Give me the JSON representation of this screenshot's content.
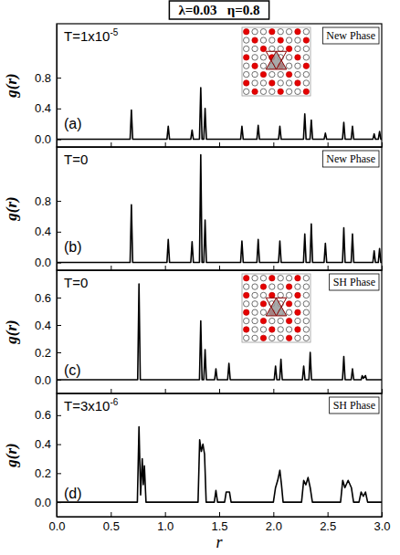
{
  "title": "λ=0.03   η=0.8",
  "chart_data": [
    {
      "type": "line",
      "label": "(a)",
      "annotation": "T=1x10",
      "annotation_superscript": "-5",
      "phase": "New Phase",
      "ylabel": "g(r)",
      "color": "#000000",
      "tick_labels": "y",
      "xlim": [
        0,
        3
      ],
      "xticks": [
        0,
        0.5,
        1,
        1.5,
        2,
        2.5,
        3
      ],
      "ylim": [
        -0.1,
        1.5
      ],
      "yticks": [
        {
          "value": 0,
          "label": "0.0"
        },
        0.4,
        0.8
      ],
      "x": [
        0,
        0.678,
        0.69,
        0.702,
        1.018,
        1.03,
        1.042,
        1.238,
        1.25,
        1.262,
        1.318,
        1.33,
        1.342,
        1.358,
        1.37,
        1.382,
        1.698,
        1.71,
        1.722,
        1.848,
        1.86,
        1.872,
        2.048,
        2.06,
        2.072,
        2.278,
        2.29,
        2.302,
        2.338,
        2.35,
        2.362,
        2.468,
        2.48,
        2.492,
        2.638,
        2.65,
        2.662,
        2.718,
        2.73,
        2.742,
        2.918,
        2.93,
        2.942,
        2.968,
        2.98,
        2.992,
        3
      ],
      "values": [
        0,
        0,
        0.38,
        0,
        0,
        0.17,
        0,
        0,
        0.12,
        0,
        0,
        0.67,
        0,
        0,
        0.4,
        0,
        0,
        0.17,
        0,
        0,
        0.18,
        0,
        0,
        0.17,
        0,
        0,
        0.33,
        0,
        0,
        0.25,
        0,
        0,
        0.08,
        0,
        0,
        0.22,
        0,
        0,
        0.17,
        0,
        0,
        0.07,
        0,
        0,
        0.1,
        0,
        0
      ]
    },
    {
      "type": "line",
      "label": "(b)",
      "annotation": "T=0",
      "phase": "New Phase",
      "ylabel": "g(r)",
      "color": "#000000",
      "tick_labels": "y",
      "xlim": [
        0,
        3
      ],
      "xticks": [
        0,
        0.5,
        1,
        1.5,
        2,
        2.5,
        3
      ],
      "ylim": [
        -0.1,
        1.5
      ],
      "yticks": [
        {
          "value": 0,
          "label": "0.0"
        },
        0.4,
        0.8
      ],
      "x": [
        0,
        0.678,
        0.69,
        0.702,
        1.018,
        1.03,
        1.042,
        1.238,
        1.25,
        1.262,
        1.318,
        1.33,
        1.342,
        1.358,
        1.37,
        1.382,
        1.698,
        1.71,
        1.722,
        1.848,
        1.86,
        1.872,
        2.048,
        2.06,
        2.072,
        2.278,
        2.29,
        2.302,
        2.338,
        2.35,
        2.362,
        2.468,
        2.48,
        2.492,
        2.638,
        2.65,
        2.662,
        2.718,
        2.73,
        2.742,
        2.918,
        2.93,
        2.942,
        2.968,
        2.98,
        2.992,
        3
      ],
      "values": [
        0,
        0,
        0.75,
        0,
        0,
        0.3,
        0,
        0,
        0.27,
        0,
        0,
        1.4,
        0,
        0,
        0.55,
        0,
        0,
        0.28,
        0,
        0,
        0.3,
        0,
        0,
        0.28,
        0,
        0,
        0.37,
        0,
        0,
        0.5,
        0,
        0,
        0.25,
        0,
        0,
        0.45,
        0,
        0,
        0.37,
        0,
        0,
        0.15,
        0,
        0,
        0.18,
        0,
        0
      ]
    },
    {
      "type": "line",
      "label": "(c)",
      "annotation": "T=0",
      "phase": "SH Phase",
      "ylabel": "g(r)",
      "color": "#000000",
      "tick_labels": "y",
      "xlim": [
        0,
        3
      ],
      "xticks": [
        0,
        0.5,
        1,
        1.5,
        2,
        2.5,
        3
      ],
      "ylim": [
        -0.1,
        0.8
      ],
      "yticks": [
        {
          "value": 0,
          "label": "0.0"
        },
        0.2,
        0.4,
        0.6
      ],
      "x": [
        0,
        0.748,
        0.76,
        0.772,
        1.318,
        1.33,
        1.342,
        1.358,
        1.37,
        1.382,
        1.458,
        1.47,
        1.482,
        1.578,
        1.59,
        1.602,
        2.008,
        2.02,
        2.032,
        2.058,
        2.07,
        2.082,
        2.268,
        2.28,
        2.292,
        2.328,
        2.34,
        2.352,
        2.638,
        2.65,
        2.662,
        2.718,
        2.73,
        2.742,
        2.81,
        2.82,
        2.83,
        2.85,
        2.86,
        3
      ],
      "values": [
        0,
        0,
        0.7,
        0,
        0,
        0.43,
        0,
        0,
        0.22,
        0,
        0,
        0.08,
        0,
        0,
        0.12,
        0,
        0,
        0.1,
        0,
        0,
        0.15,
        0,
        0,
        0.1,
        0,
        0,
        0.2,
        0,
        0,
        0.17,
        0,
        0,
        0.08,
        0,
        0,
        0.03,
        0.01,
        0.03,
        0,
        0
      ]
    },
    {
      "type": "line",
      "label": "(d)",
      "annotation": "T=3x10",
      "annotation_superscript": "-6",
      "phase": "SH Phase",
      "ylabel": "g(r)",
      "xlabel": "r",
      "color": "#000000",
      "xlim": [
        0,
        3
      ],
      "xticks": [
        {
          "value": 0,
          "label": "0.0"
        },
        0.5,
        {
          "value": 1,
          "label": "1.0"
        },
        1.5,
        {
          "value": 2,
          "label": "2.0"
        },
        2.5,
        {
          "value": 3,
          "label": "3.0"
        }
      ],
      "ylim": [
        -0.1,
        0.75
      ],
      "yticks": [
        {
          "value": 0,
          "label": "0.0"
        },
        0.2,
        0.4,
        0.6
      ],
      "x": [
        0,
        0.745,
        0.76,
        0.775,
        0.79,
        0.8,
        0.81,
        0.825,
        1.305,
        1.32,
        1.335,
        1.35,
        1.365,
        1.38,
        1.455,
        1.47,
        1.485,
        1.55,
        1.565,
        1.58,
        1.595,
        1.61,
        2.0,
        2.02,
        2.04,
        2.06,
        2.075,
        2.09,
        2.26,
        2.28,
        2.3,
        2.32,
        2.34,
        2.36,
        2.62,
        2.64,
        2.66,
        2.69,
        2.72,
        2.74,
        2.79,
        2.81,
        2.83,
        2.85,
        2.87,
        3
      ],
      "values": [
        0,
        0,
        0.52,
        0.05,
        0.3,
        0.12,
        0.25,
        0,
        0,
        0.43,
        0.35,
        0.4,
        0.33,
        0,
        0,
        0.08,
        0,
        0,
        0.07,
        0.07,
        0.07,
        0,
        0,
        0.1,
        0.15,
        0.22,
        0.12,
        0,
        0,
        0.15,
        0.12,
        0.17,
        0.1,
        0,
        0,
        0.15,
        0.1,
        0.15,
        0.1,
        0,
        0,
        0.07,
        0.04,
        0.07,
        0,
        0
      ]
    }
  ]
}
